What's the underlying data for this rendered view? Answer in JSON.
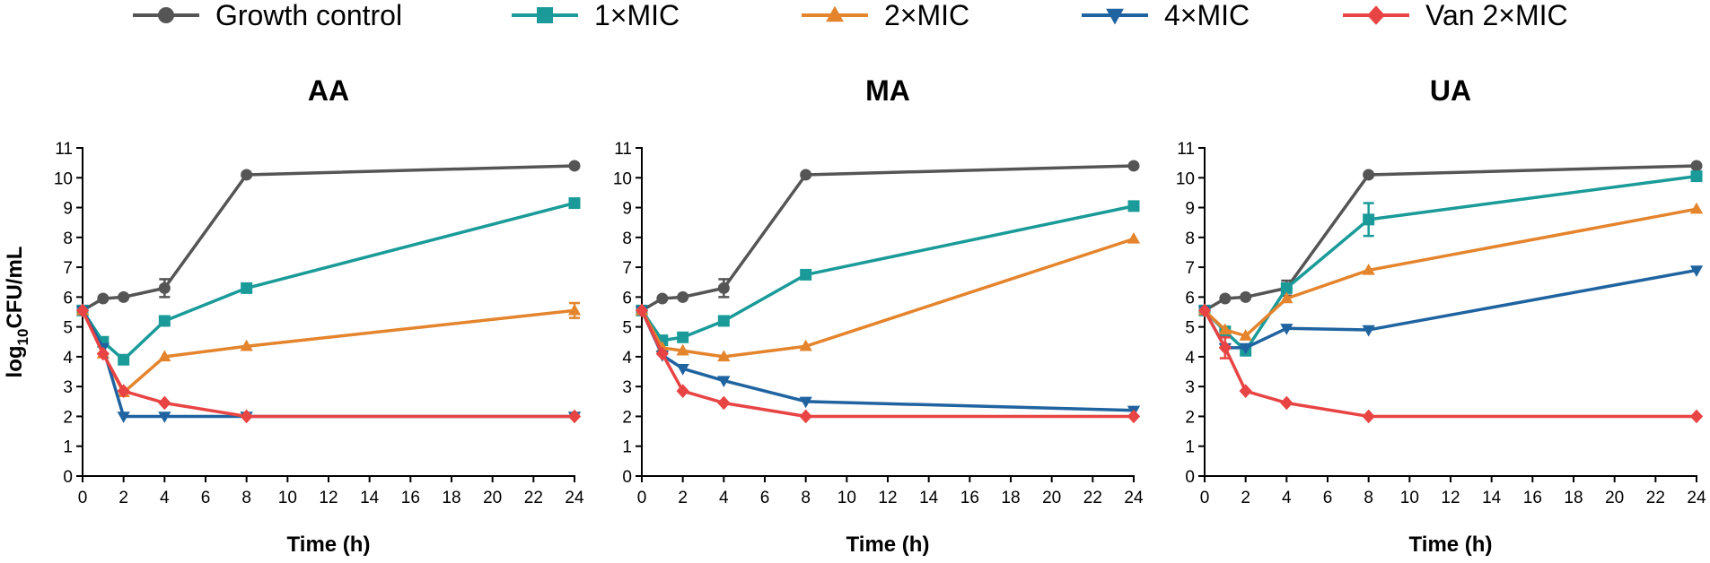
{
  "legend": [
    {
      "key": "growth",
      "label": "Growth control",
      "color": "#555555",
      "marker": "circle"
    },
    {
      "key": "mic1",
      "label": "1×MIC",
      "color": "#1a9b99",
      "marker": "square"
    },
    {
      "key": "mic2",
      "label": "2×MIC",
      "color": "#e4842c",
      "marker": "triangle-up"
    },
    {
      "key": "mic4",
      "label": "4×MIC",
      "color": "#1f63a0",
      "marker": "triangle-down"
    },
    {
      "key": "van",
      "label": "Van 2×MIC",
      "color": "#e84444",
      "marker": "diamond"
    }
  ],
  "y_axis_label": {
    "main": "log",
    "sub": "10",
    "rest": "CFU/mL"
  },
  "chart_data": [
    {
      "type": "line",
      "title": "AA",
      "xlabel": "Time (h)",
      "ylabel": "log10CFU/mL",
      "xlim": [
        0,
        24
      ],
      "ylim": [
        0,
        11
      ],
      "xticks": [
        0,
        2,
        4,
        6,
        8,
        10,
        12,
        14,
        16,
        18,
        20,
        22,
        24
      ],
      "yticks": [
        0,
        1,
        2,
        3,
        4,
        5,
        6,
        7,
        8,
        9,
        10,
        11
      ],
      "series": [
        {
          "key": "growth",
          "name": "Growth control",
          "x": [
            0,
            1,
            2,
            4,
            8,
            24
          ],
          "y": [
            5.55,
            5.95,
            6.0,
            6.3,
            10.1,
            10.4
          ],
          "err": [
            0,
            0,
            0,
            0.3,
            0,
            0
          ]
        },
        {
          "key": "mic1",
          "name": "1×MIC",
          "x": [
            0,
            1,
            2,
            4,
            8,
            24
          ],
          "y": [
            5.55,
            4.5,
            3.9,
            5.2,
            6.3,
            9.15
          ],
          "err": [
            0,
            0,
            0,
            0,
            0,
            0
          ]
        },
        {
          "key": "mic2",
          "name": "2×MIC",
          "x": [
            0,
            1,
            2,
            4,
            8,
            24
          ],
          "y": [
            5.55,
            4.1,
            2.8,
            4.0,
            4.35,
            5.55
          ],
          "err": [
            0,
            0,
            0,
            0,
            0,
            0.25
          ]
        },
        {
          "key": "mic4",
          "name": "4×MIC",
          "x": [
            0,
            1,
            2,
            4,
            8,
            24
          ],
          "y": [
            5.55,
            4.3,
            2.0,
            2.0,
            2.0,
            2.0
          ],
          "err": [
            0,
            0,
            0,
            0,
            0,
            0
          ]
        },
        {
          "key": "van",
          "name": "Van 2×MIC",
          "x": [
            0,
            1,
            2,
            4,
            8,
            24
          ],
          "y": [
            5.55,
            4.1,
            2.85,
            2.45,
            2.0,
            2.0
          ],
          "err": [
            0,
            0,
            0,
            0,
            0,
            0
          ]
        }
      ]
    },
    {
      "type": "line",
      "title": "MA",
      "xlabel": "Time (h)",
      "ylabel": "",
      "xlim": [
        0,
        24
      ],
      "ylim": [
        0,
        11
      ],
      "xticks": [
        0,
        2,
        4,
        6,
        8,
        10,
        12,
        14,
        16,
        18,
        20,
        22,
        24
      ],
      "yticks": [
        0,
        1,
        2,
        3,
        4,
        5,
        6,
        7,
        8,
        9,
        10,
        11
      ],
      "series": [
        {
          "key": "growth",
          "name": "Growth control",
          "x": [
            0,
            1,
            2,
            4,
            8,
            24
          ],
          "y": [
            5.55,
            5.95,
            6.0,
            6.3,
            10.1,
            10.4
          ],
          "err": [
            0,
            0,
            0,
            0.3,
            0,
            0
          ]
        },
        {
          "key": "mic1",
          "name": "1×MIC",
          "x": [
            0,
            1,
            2,
            4,
            8,
            24
          ],
          "y": [
            5.55,
            4.55,
            4.65,
            5.2,
            6.75,
            9.05
          ],
          "err": [
            0,
            0,
            0,
            0,
            0,
            0
          ]
        },
        {
          "key": "mic2",
          "name": "2×MIC",
          "x": [
            0,
            1,
            2,
            4,
            8,
            24
          ],
          "y": [
            5.55,
            4.3,
            4.2,
            4.0,
            4.35,
            7.95
          ],
          "err": [
            0,
            0,
            0,
            0,
            0,
            0
          ]
        },
        {
          "key": "mic4",
          "name": "4×MIC",
          "x": [
            0,
            1,
            2,
            4,
            8,
            24
          ],
          "y": [
            5.55,
            4.05,
            3.6,
            3.2,
            2.5,
            2.2
          ],
          "err": [
            0,
            0,
            0,
            0,
            0,
            0
          ]
        },
        {
          "key": "van",
          "name": "Van 2×MIC",
          "x": [
            0,
            1,
            2,
            4,
            8,
            24
          ],
          "y": [
            5.55,
            4.1,
            2.85,
            2.45,
            2.0,
            2.0
          ],
          "err": [
            0,
            0,
            0,
            0,
            0,
            0
          ]
        }
      ]
    },
    {
      "type": "line",
      "title": "UA",
      "xlabel": "Time (h)",
      "ylabel": "",
      "xlim": [
        0,
        24
      ],
      "ylim": [
        0,
        11
      ],
      "xticks": [
        0,
        2,
        4,
        6,
        8,
        10,
        12,
        14,
        16,
        18,
        20,
        22,
        24
      ],
      "yticks": [
        0,
        1,
        2,
        3,
        4,
        5,
        6,
        7,
        8,
        9,
        10,
        11
      ],
      "series": [
        {
          "key": "growth",
          "name": "Growth control",
          "x": [
            0,
            1,
            2,
            4,
            8,
            24
          ],
          "y": [
            5.55,
            5.95,
            6.0,
            6.3,
            10.1,
            10.4
          ],
          "err": [
            0,
            0,
            0,
            0.25,
            0,
            0
          ]
        },
        {
          "key": "mic1",
          "name": "1×MIC",
          "x": [
            0,
            1,
            2,
            4,
            8,
            24
          ],
          "y": [
            5.55,
            4.85,
            4.2,
            6.3,
            8.6,
            10.05
          ],
          "err": [
            0,
            0,
            0,
            0,
            0.55,
            0
          ]
        },
        {
          "key": "mic2",
          "name": "2×MIC",
          "x": [
            0,
            1,
            2,
            4,
            8,
            24
          ],
          "y": [
            5.55,
            4.9,
            4.7,
            5.95,
            6.9,
            8.95
          ],
          "err": [
            0,
            0,
            0,
            0,
            0,
            0
          ]
        },
        {
          "key": "mic4",
          "name": "4×MIC",
          "x": [
            0,
            1,
            2,
            4,
            8,
            24
          ],
          "y": [
            5.55,
            4.3,
            4.3,
            4.95,
            4.9,
            6.9
          ],
          "err": [
            0,
            0,
            0,
            0,
            0,
            0
          ]
        },
        {
          "key": "van",
          "name": "Van 2×MIC",
          "x": [
            0,
            1,
            2,
            4,
            8,
            24
          ],
          "y": [
            5.55,
            4.3,
            2.85,
            2.45,
            2.0,
            2.0
          ],
          "err": [
            0,
            0.35,
            0,
            0,
            0,
            0
          ]
        }
      ]
    }
  ]
}
